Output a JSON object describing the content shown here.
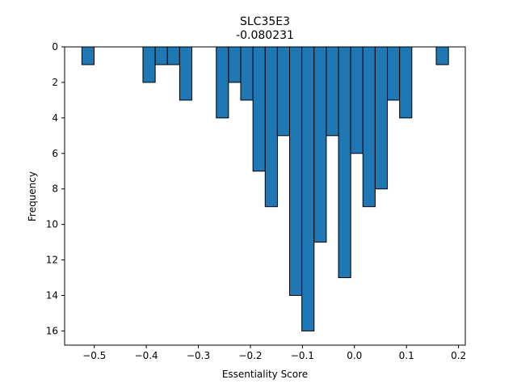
{
  "chart_data": {
    "type": "bar",
    "title": "SLC35E3",
    "subtitle": "-0.080231",
    "xlabel": "Essentiality Score",
    "ylabel": "Frequency",
    "y_axis_inverted": true,
    "xlim": [
      -0.557,
      0.213
    ],
    "ylim": [
      0,
      16.8
    ],
    "xticks": [
      -0.5,
      -0.4,
      -0.3,
      -0.2,
      -0.1,
      0.0,
      0.1,
      0.2
    ],
    "xtick_labels": [
      "−0.5",
      "−0.4",
      "−0.3",
      "−0.2",
      "−0.1",
      "0.0",
      "0.1",
      "0.2"
    ],
    "yticks": [
      0,
      2,
      4,
      6,
      8,
      10,
      12,
      14,
      16
    ],
    "ytick_labels": [
      "0",
      "2",
      "4",
      "6",
      "8",
      "10",
      "12",
      "14",
      "16"
    ],
    "bin_width": 0.0235,
    "bins": [
      {
        "x": -0.5121,
        "value": 1
      },
      {
        "x": -0.3947,
        "value": 2
      },
      {
        "x": -0.3712,
        "value": 1
      },
      {
        "x": -0.3477,
        "value": 1
      },
      {
        "x": -0.3242,
        "value": 3
      },
      {
        "x": -0.2538,
        "value": 4
      },
      {
        "x": -0.2303,
        "value": 2
      },
      {
        "x": -0.2068,
        "value": 3
      },
      {
        "x": -0.1833,
        "value": 7
      },
      {
        "x": -0.1598,
        "value": 9
      },
      {
        "x": -0.1364,
        "value": 5
      },
      {
        "x": -0.1129,
        "value": 14
      },
      {
        "x": -0.0894,
        "value": 16
      },
      {
        "x": -0.0659,
        "value": 11
      },
      {
        "x": -0.0424,
        "value": 5
      },
      {
        "x": -0.0189,
        "value": 13
      },
      {
        "x": 0.0045,
        "value": 6
      },
      {
        "x": 0.028,
        "value": 9
      },
      {
        "x": 0.0515,
        "value": 8
      },
      {
        "x": 0.075,
        "value": 3
      },
      {
        "x": 0.0985,
        "value": 4
      },
      {
        "x": 0.1689,
        "value": 1
      }
    ],
    "grid": false,
    "colors": {
      "bar": "#1f77b4",
      "edge": "#000000"
    }
  }
}
